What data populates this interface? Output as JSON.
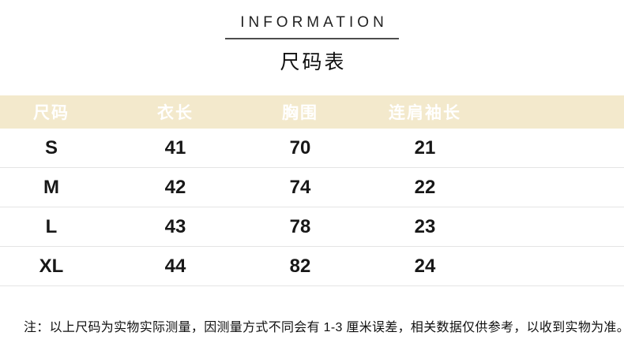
{
  "header": {
    "eyebrow": "INFORMATION",
    "title": "尺码表"
  },
  "chart_data": {
    "type": "table",
    "title": "尺码表",
    "subtitle": "INFORMATION",
    "columns": [
      "尺码",
      "衣长",
      "胸围",
      "连肩袖长"
    ],
    "rows": [
      [
        "S",
        "41",
        "70",
        "21"
      ],
      [
        "M",
        "42",
        "74",
        "22"
      ],
      [
        "L",
        "43",
        "78",
        "23"
      ],
      [
        "XL",
        "44",
        "82",
        "24"
      ]
    ],
    "note": "注：以上尺码为实物实际测量，因测量方式不同会有 1-3 厘米误差，相关数据仅供参考，以收到实物为准。"
  },
  "colors": {
    "header-bg": "#f3e9cc",
    "header-text": "#ffffff",
    "row-divider": "#e4e4e4",
    "text": "#171717",
    "divider": "#4d4d4d"
  }
}
